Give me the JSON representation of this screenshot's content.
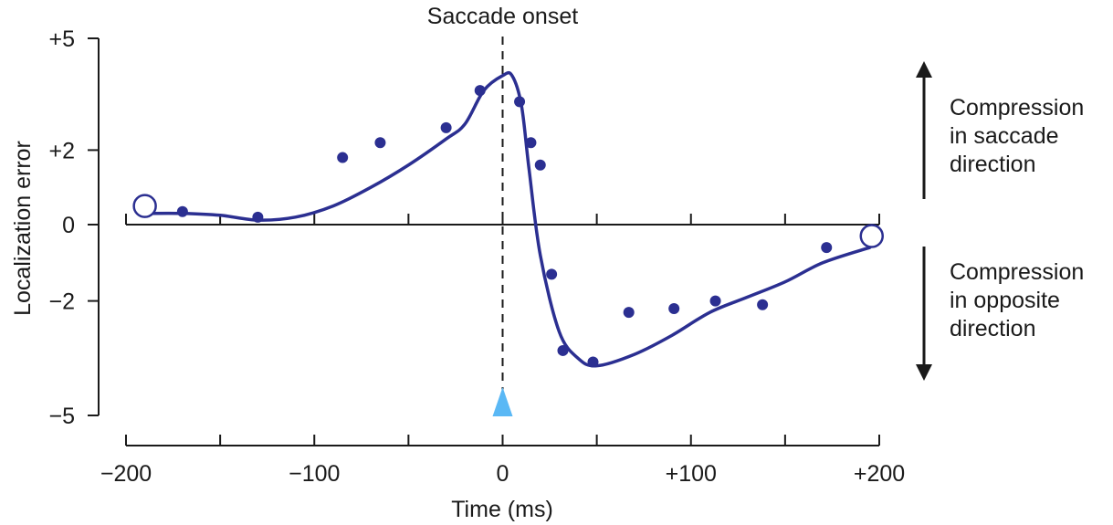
{
  "chart_data": {
    "type": "line",
    "xlabel": "Time (ms)",
    "ylabel": "Localization error",
    "xlim": [
      -200,
      200
    ],
    "ylim": [
      -5,
      5
    ],
    "x_ticks": [
      {
        "value": -200,
        "label": "−200"
      },
      {
        "value": -100,
        "label": "−100"
      },
      {
        "value": 0,
        "label": "0"
      },
      {
        "value": 100,
        "label": "+100"
      },
      {
        "value": 200,
        "label": "+200"
      }
    ],
    "x_minor_ticks": [
      -150,
      -50,
      50,
      150
    ],
    "y_ticks": [
      {
        "value": 5,
        "label": "+5"
      },
      {
        "value": 2,
        "label": "+2"
      },
      {
        "value": 0,
        "label": "0"
      },
      {
        "value": -2,
        "label": "−2"
      },
      {
        "value": -5,
        "label": "−5"
      }
    ],
    "reference_line": {
      "x": 0,
      "label": "Saccade onset",
      "style": "dashed"
    },
    "onset_marker": {
      "x": 0,
      "shape": "triangle",
      "color": "#5ab8f5"
    },
    "series": [
      {
        "kind": "fit-curve",
        "color": "#2b2f91",
        "points": [
          [
            -190,
            0.3
          ],
          [
            -170,
            0.3
          ],
          [
            -150,
            0.25
          ],
          [
            -130,
            0.12
          ],
          [
            -110,
            0.2
          ],
          [
            -90,
            0.5
          ],
          [
            -70,
            1.0
          ],
          [
            -50,
            1.6
          ],
          [
            -30,
            2.3
          ],
          [
            -20,
            2.7
          ],
          [
            -10,
            3.6
          ],
          [
            0,
            4.0
          ],
          [
            5,
            4.0
          ],
          [
            10,
            3.2
          ],
          [
            14,
            1.5
          ],
          [
            20,
            -0.8
          ],
          [
            30,
            -2.8
          ],
          [
            40,
            -3.5
          ],
          [
            50,
            -3.7
          ],
          [
            70,
            -3.4
          ],
          [
            90,
            -2.9
          ],
          [
            110,
            -2.3
          ],
          [
            130,
            -1.9
          ],
          [
            150,
            -1.5
          ],
          [
            170,
            -1.0
          ],
          [
            195,
            -0.6
          ]
        ]
      },
      {
        "kind": "data-points",
        "color": "#2b2f91",
        "points": [
          [
            -170,
            0.35
          ],
          [
            -130,
            0.2
          ],
          [
            -85,
            1.8
          ],
          [
            -65,
            2.2
          ],
          [
            -30,
            2.6
          ],
          [
            -12,
            3.6
          ],
          [
            9,
            3.3
          ],
          [
            15,
            2.2
          ],
          [
            20,
            1.6
          ],
          [
            26,
            -1.3
          ],
          [
            32,
            -3.3
          ],
          [
            48,
            -3.6
          ],
          [
            67,
            -2.3
          ],
          [
            91,
            -2.2
          ],
          [
            113,
            -2.0
          ],
          [
            138,
            -2.1
          ],
          [
            172,
            -0.6
          ]
        ]
      },
      {
        "kind": "endpoints",
        "style": "open-circle",
        "color": "#2b2f91",
        "points": [
          [
            -190,
            0.5
          ],
          [
            196,
            -0.3
          ]
        ]
      }
    ],
    "annotations": [
      {
        "direction": "up",
        "lines": [
          "Compression",
          "in saccade",
          "direction"
        ]
      },
      {
        "direction": "down",
        "lines": [
          "Compression",
          "in opposite",
          "direction"
        ]
      }
    ]
  }
}
